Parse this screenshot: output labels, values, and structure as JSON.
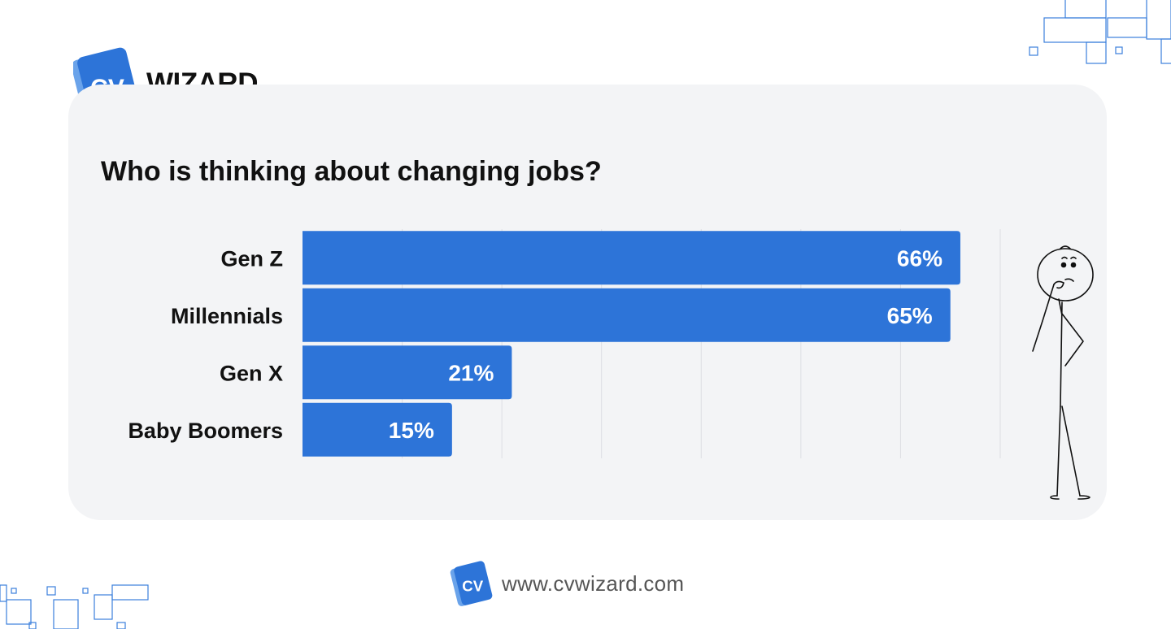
{
  "brand": {
    "logo_letters": "CV",
    "logo_word": "WIZARD",
    "color": "#2d74d8"
  },
  "chart_data": {
    "type": "bar",
    "orientation": "horizontal",
    "title": "Who is thinking about changing jobs?",
    "categories": [
      "Gen Z",
      "Millennials",
      "Gen X",
      "Baby Boomers"
    ],
    "values": [
      66,
      65,
      21,
      15
    ],
    "value_labels": [
      "66%",
      "65%",
      "21%",
      "15%"
    ],
    "xlim": [
      0,
      70
    ],
    "grid": true,
    "bar_color": "#2d74d8",
    "label_color": "#ffffff"
  },
  "footer": {
    "url": "www.cvwizard.com"
  },
  "illustration": {
    "icon": "thinking-stick-figure-icon"
  }
}
